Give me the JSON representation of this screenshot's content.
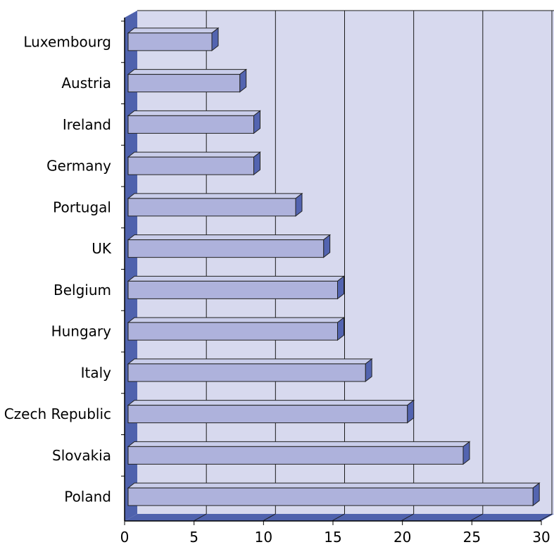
{
  "chart_data": {
    "type": "bar",
    "orientation": "horizontal",
    "style": "3d",
    "categories": [
      "Luxembourg",
      "Austria",
      "Ireland",
      "Germany",
      "Portugal",
      "UK",
      "Belgium",
      "Hungary",
      "Italy",
      "Czech Republic",
      "Slovakia",
      "Poland"
    ],
    "values": [
      6,
      8,
      9,
      9,
      12,
      14,
      15,
      15,
      17,
      20,
      24,
      29
    ],
    "xlim": [
      0,
      30
    ],
    "x_ticks": [
      "0",
      "5",
      "10",
      "15",
      "20",
      "25",
      "30"
    ],
    "grid": true,
    "legend": "none",
    "title": "",
    "xlabel": "",
    "ylabel": ""
  },
  "colors": {
    "plot_background": "#d7d9ee",
    "wall_side": "#4f62ad",
    "floor": "#4f62ad",
    "bar_front": "#aeb2dc",
    "bar_top": "#c9cdea",
    "bar_side": "#5364b0",
    "gridline": "#1a1a1a"
  }
}
